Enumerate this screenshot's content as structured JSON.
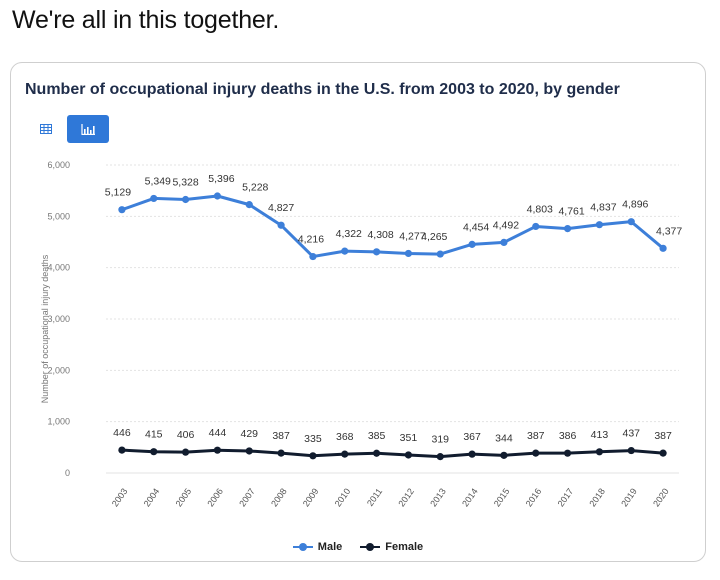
{
  "post": {
    "caption": "We're all in this together."
  },
  "card": {
    "title": "Number of occupational injury deaths in the U.S. from 2003 to 2020, by gender"
  },
  "toggle": {
    "table_icon": "table-icon",
    "chart_icon": "bar-chart-icon",
    "accent": "#2f78d8"
  },
  "chart_data": {
    "type": "line",
    "x": [
      "2003",
      "2004",
      "2005",
      "2006",
      "2007",
      "2008",
      "2009",
      "2010",
      "2011",
      "2012",
      "2013",
      "2014",
      "2015",
      "2016",
      "2017",
      "2018",
      "2019",
      "2020"
    ],
    "series": [
      {
        "name": "Male",
        "color": "#3d7fd9",
        "values": [
          5129,
          5349,
          5328,
          5396,
          5228,
          4827,
          4216,
          4322,
          4308,
          4277,
          4265,
          4454,
          4492,
          4803,
          4761,
          4837,
          4896,
          4377
        ],
        "labels": [
          "5,129",
          "5,349",
          "5,328",
          "5,396",
          "5,228",
          "4,827",
          "4,216",
          "4,322",
          "4,308",
          "4,277",
          "4,265",
          "4,454",
          "4,492",
          "4,803",
          "4,761",
          "4,837",
          "4,896",
          "4,377"
        ]
      },
      {
        "name": "Female",
        "color": "#111c2e",
        "values": [
          446,
          415,
          406,
          444,
          429,
          387,
          335,
          368,
          385,
          351,
          319,
          367,
          344,
          387,
          386,
          413,
          437,
          387
        ],
        "labels": [
          "446",
          "415",
          "406",
          "444",
          "429",
          "387",
          "335",
          "368",
          "385",
          "351",
          "319",
          "367",
          "344",
          "387",
          "386",
          "413",
          "437",
          "387"
        ]
      }
    ],
    "yticks": [
      0,
      1000,
      2000,
      3000,
      4000,
      5000,
      6000
    ],
    "ytick_labels": [
      "0",
      "1,000",
      "2,000",
      "3,000",
      "4,000",
      "5,000",
      "6,000"
    ],
    "ylim": [
      0,
      6000
    ],
    "ylabel": "Number of occupational injury deaths",
    "xlabel": "",
    "grid": true,
    "legend_position": "bottom-center"
  }
}
